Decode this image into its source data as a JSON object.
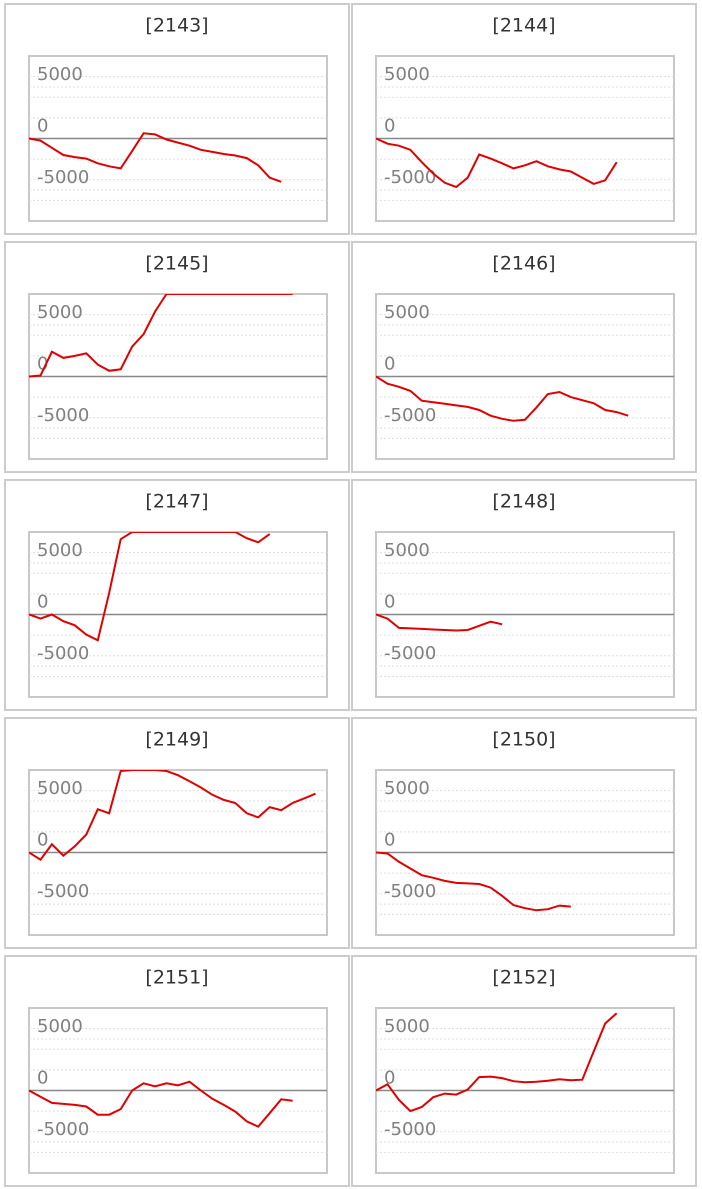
{
  "chart_data": [
    {
      "type": "line",
      "title": "[2143]",
      "color": "#e00000",
      "xlim": [
        0,
        26
      ],
      "ylim": [
        -8000,
        8000
      ],
      "yticks": [
        5000,
        0,
        -5000
      ],
      "grid_yticks": [
        -6000,
        -4000,
        -2000,
        2000,
        4000,
        6000
      ],
      "x": [
        0,
        1,
        2,
        3,
        4,
        5,
        6,
        7,
        8,
        9,
        10,
        11,
        12,
        13,
        14,
        15,
        16,
        17,
        18,
        19,
        20,
        21,
        22
      ],
      "values": [
        0,
        -200,
        -900,
        -1600,
        -1800,
        -1950,
        -2400,
        -2700,
        -2900,
        -1200,
        500,
        400,
        -100,
        -400,
        -700,
        -1100,
        -1300,
        -1500,
        -1650,
        -1900,
        -2600,
        -3800,
        -4200
      ]
    },
    {
      "type": "line",
      "title": "[2144]",
      "color": "#e00000",
      "xlim": [
        0,
        26
      ],
      "ylim": [
        -8000,
        8000
      ],
      "yticks": [
        5000,
        0,
        -5000
      ],
      "grid_yticks": [
        -6000,
        -4000,
        -2000,
        2000,
        4000,
        6000
      ],
      "x": [
        0,
        1,
        2,
        3,
        4,
        5,
        6,
        7,
        8,
        9,
        10,
        11,
        12,
        13,
        14,
        15,
        16,
        17,
        18,
        19,
        20,
        21
      ],
      "values": [
        0,
        -500,
        -700,
        -1100,
        -2300,
        -3400,
        -4300,
        -4700,
        -3800,
        -1550,
        -1950,
        -2400,
        -2900,
        -2600,
        -2200,
        -2700,
        -3000,
        -3200,
        -3800,
        -4400,
        -4050,
        -2300
      ]
    },
    {
      "type": "line",
      "title": "[2145]",
      "color": "#e00000",
      "xlim": [
        0,
        26
      ],
      "ylim": [
        -8000,
        8000
      ],
      "yticks": [
        5000,
        0,
        -5000
      ],
      "grid_yticks": [
        -6000,
        -4000,
        -2000,
        2000,
        4000,
        6000
      ],
      "x": [
        0,
        1,
        2,
        3,
        4,
        5,
        6,
        7,
        8,
        9,
        10,
        11,
        12,
        13,
        14,
        15,
        16,
        17,
        18,
        19,
        20,
        21,
        22,
        23
      ],
      "values": [
        0,
        100,
        2400,
        1800,
        2000,
        2250,
        1150,
        550,
        700,
        2900,
        4100,
        6300,
        8000,
        8000,
        8000,
        8000,
        8000,
        8000,
        8000,
        8000,
        8000,
        8000,
        8000,
        8000
      ]
    },
    {
      "type": "line",
      "title": "[2146]",
      "color": "#e00000",
      "xlim": [
        0,
        26
      ],
      "ylim": [
        -8000,
        8000
      ],
      "yticks": [
        5000,
        0,
        -5000
      ],
      "grid_yticks": [
        -6000,
        -4000,
        -2000,
        2000,
        4000,
        6000
      ],
      "x": [
        0,
        1,
        2,
        3,
        4,
        5,
        6,
        7,
        8,
        9,
        10,
        11,
        12,
        13,
        14,
        15,
        16,
        17,
        18,
        19,
        20,
        21,
        22
      ],
      "values": [
        0,
        -700,
        -1000,
        -1400,
        -2350,
        -2500,
        -2650,
        -2800,
        -2950,
        -3250,
        -3800,
        -4100,
        -4300,
        -4200,
        -3000,
        -1700,
        -1500,
        -2000,
        -2300,
        -2600,
        -3250,
        -3450,
        -3800
      ]
    },
    {
      "type": "line",
      "title": "[2147]",
      "color": "#e00000",
      "xlim": [
        0,
        26
      ],
      "ylim": [
        -8000,
        8000
      ],
      "yticks": [
        5000,
        0,
        -5000
      ],
      "grid_yticks": [
        -6000,
        -4000,
        -2000,
        2000,
        4000,
        6000
      ],
      "x": [
        0,
        1,
        2,
        3,
        4,
        5,
        6,
        7,
        8,
        9,
        10,
        11,
        12,
        13,
        14,
        15,
        16,
        17,
        18,
        19,
        20,
        21
      ],
      "values": [
        0,
        -400,
        0,
        -650,
        -1050,
        -1950,
        -2500,
        2100,
        7300,
        8000,
        8000,
        8000,
        8000,
        8000,
        8000,
        8000,
        8000,
        8000,
        8000,
        7400,
        7000,
        7800
      ]
    },
    {
      "type": "line",
      "title": "[2148]",
      "color": "#e00000",
      "xlim": [
        0,
        26
      ],
      "ylim": [
        -8000,
        8000
      ],
      "yticks": [
        5000,
        0,
        -5000
      ],
      "grid_yticks": [
        -6000,
        -4000,
        -2000,
        2000,
        4000,
        6000
      ],
      "x": [
        0,
        1,
        2,
        3,
        4,
        5,
        6,
        7,
        8,
        9,
        10,
        11
      ],
      "values": [
        0,
        -400,
        -1300,
        -1350,
        -1400,
        -1450,
        -1500,
        -1550,
        -1500,
        -1100,
        -700,
        -950
      ]
    },
    {
      "type": "line",
      "title": "[2149]",
      "color": "#e00000",
      "xlim": [
        0,
        26
      ],
      "ylim": [
        -8000,
        8000
      ],
      "yticks": [
        5000,
        0,
        -5000
      ],
      "grid_yticks": [
        -6000,
        -4000,
        -2000,
        2000,
        4000,
        6000
      ],
      "x": [
        0,
        1,
        2,
        3,
        4,
        5,
        6,
        7,
        8,
        9,
        10,
        11,
        12,
        13,
        14,
        15,
        16,
        17,
        18,
        19,
        20,
        21,
        22,
        23,
        24,
        25
      ],
      "values": [
        0,
        -700,
        800,
        -300,
        600,
        1750,
        4200,
        3800,
        7900,
        8000,
        8000,
        8000,
        7900,
        7500,
        6900,
        6300,
        5600,
        5100,
        4800,
        3800,
        3400,
        4400,
        4100,
        4800,
        5250,
        5700
      ]
    },
    {
      "type": "line",
      "title": "[2150]",
      "color": "#e00000",
      "xlim": [
        0,
        26
      ],
      "ylim": [
        -8000,
        8000
      ],
      "yticks": [
        5000,
        0,
        -5000
      ],
      "grid_yticks": [
        -6000,
        -4000,
        -2000,
        2000,
        4000,
        6000
      ],
      "x": [
        0,
        1,
        2,
        3,
        4,
        5,
        6,
        7,
        8,
        9,
        10,
        11,
        12,
        13,
        14,
        15,
        16,
        17
      ],
      "values": [
        0,
        -100,
        -900,
        -1550,
        -2200,
        -2450,
        -2750,
        -2950,
        -3000,
        -3050,
        -3400,
        -4200,
        -5100,
        -5400,
        -5600,
        -5500,
        -5150,
        -5250
      ]
    },
    {
      "type": "line",
      "title": "[2151]",
      "color": "#e00000",
      "xlim": [
        0,
        26
      ],
      "ylim": [
        -8000,
        8000
      ],
      "yticks": [
        5000,
        0,
        -5000
      ],
      "grid_yticks": [
        -6000,
        -4000,
        -2000,
        2000,
        4000,
        6000
      ],
      "x": [
        0,
        1,
        2,
        3,
        4,
        5,
        6,
        7,
        8,
        9,
        10,
        11,
        12,
        13,
        14,
        15,
        16,
        17,
        18,
        19,
        20,
        21,
        22,
        23
      ],
      "values": [
        0,
        -600,
        -1200,
        -1300,
        -1400,
        -1550,
        -2350,
        -2350,
        -1800,
        0,
        700,
        400,
        700,
        500,
        850,
        0,
        -800,
        -1400,
        -2050,
        -3000,
        -3500,
        -2200,
        -850,
        -1000
      ]
    },
    {
      "type": "line",
      "title": "[2152]",
      "color": "#e00000",
      "xlim": [
        0,
        26
      ],
      "ylim": [
        -8000,
        8000
      ],
      "yticks": [
        5000,
        0,
        -5000
      ],
      "grid_yticks": [
        -6000,
        -4000,
        -2000,
        2000,
        4000,
        6000
      ],
      "x": [
        0,
        1,
        2,
        3,
        4,
        5,
        6,
        7,
        8,
        9,
        10,
        11,
        12,
        13,
        14,
        15,
        16,
        17,
        18,
        19,
        20,
        21
      ],
      "values": [
        0,
        600,
        -900,
        -2000,
        -1600,
        -650,
        -300,
        -400,
        100,
        1300,
        1350,
        1200,
        900,
        800,
        850,
        950,
        1100,
        1000,
        1050,
        3800,
        6500,
        7500
      ]
    }
  ]
}
